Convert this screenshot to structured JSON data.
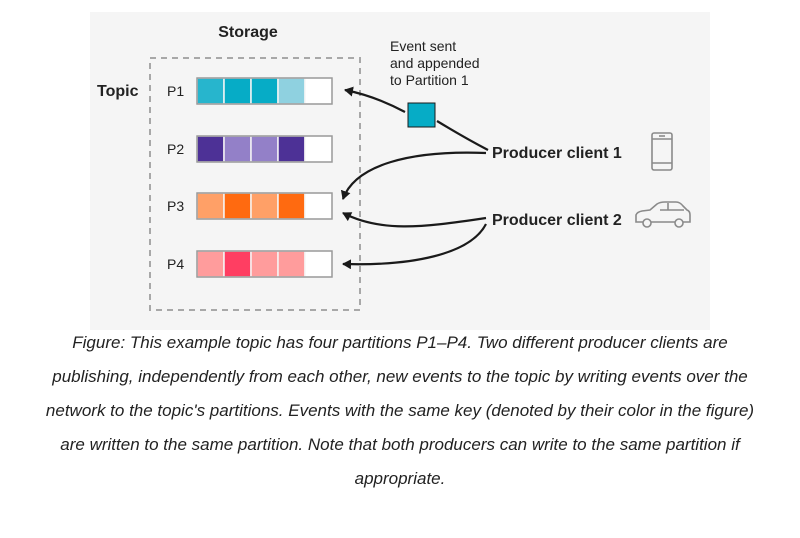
{
  "diagram": {
    "storage_label": "Storage",
    "topic_label": "Topic",
    "event_note": [
      "Event sent",
      "and appended",
      "to Partition 1"
    ],
    "producers": [
      {
        "label": "Producer client 1",
        "device_icon": "phone-icon"
      },
      {
        "label": "Producer client 2",
        "device_icon": "car-icon"
      }
    ],
    "partitions": [
      {
        "label": "P1",
        "cells": [
          "#27b5cd",
          "#06acc6",
          "#06acc6",
          "#8fd1e0",
          "#ffffff"
        ]
      },
      {
        "label": "P2",
        "cells": [
          "#4d3196",
          "#9380c8",
          "#9380c8",
          "#4d3196",
          "#ffffff"
        ]
      },
      {
        "label": "P3",
        "cells": [
          "#ffa067",
          "#ff6a10",
          "#ffa067",
          "#ff6a10",
          "#ffffff"
        ]
      },
      {
        "label": "P4",
        "cells": [
          "#ff9c9c",
          "#ff3e62",
          "#ff9c9c",
          "#ff9c9c",
          "#ffffff"
        ]
      }
    ],
    "event_color": "#06acc6"
  },
  "caption": "Figure: This example topic has four partitions P1–P4. Two different producer clients are publishing, independently from each other, new events to the topic by writing events over the network to the topic's partitions. Events with the same key (denoted by their color in the figure) are written to the same partition. Note that both producers can write to the same partition if appropriate."
}
